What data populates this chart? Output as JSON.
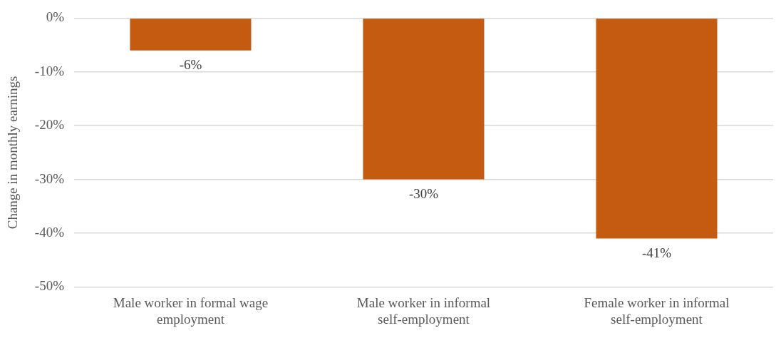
{
  "chart_data": {
    "type": "bar",
    "ylabel": "Change in monthly earnings",
    "categories": [
      "Male worker in formal wage employment",
      "Male worker in informal self-employment",
      "Female worker in informal self-employment"
    ],
    "values": [
      -6,
      -30,
      -41
    ],
    "color": "#c55a11",
    "value_labels": [
      "-6%",
      "-30%",
      "-41%"
    ],
    "ylim": [
      -50,
      0
    ],
    "yticks": [
      {
        "value": 0,
        "label": "0%"
      },
      {
        "value": -10,
        "label": "-10%"
      },
      {
        "value": -20,
        "label": "-20%"
      },
      {
        "value": -30,
        "label": "-30%"
      },
      {
        "value": -40,
        "label": "-40%"
      },
      {
        "value": -50,
        "label": "-50%"
      }
    ],
    "grid": "y"
  }
}
